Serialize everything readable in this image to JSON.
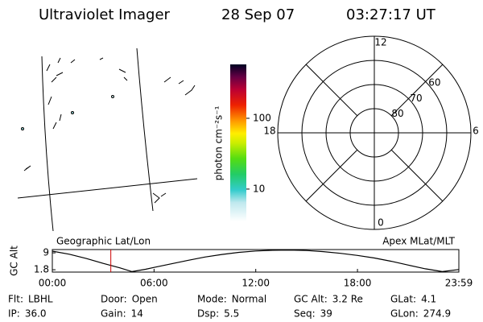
{
  "header": {
    "instrument": "Ultraviolet Imager",
    "date": "28 Sep 07",
    "time": "03:27:17 UT"
  },
  "colorbar": {
    "label": "photon cm⁻²s⁻¹",
    "scale": "log",
    "lim": [
      3.5,
      577
    ],
    "ticks": [
      10,
      100
    ]
  },
  "polar": {
    "lat_lim": [
      50,
      90
    ],
    "rings": [
      50,
      60,
      70,
      80
    ],
    "ring_labels": [
      60,
      70,
      80
    ],
    "mlt_labels": [
      12,
      18,
      6,
      0
    ]
  },
  "chart_data": {
    "type": "line",
    "ylabel": "GC Alt",
    "left_label": "Geographic Lat/Lon",
    "right_label": "Apex MLat/MLT",
    "x": [
      0,
      1,
      2,
      3,
      4,
      4.7,
      5.5,
      6,
      7,
      8,
      9,
      10,
      11,
      12,
      13,
      14,
      15,
      16,
      17,
      18,
      19,
      20,
      21,
      22,
      23,
      23.98
    ],
    "values": [
      9.7,
      8.4,
      6.6,
      4.5,
      2.6,
      1.0,
      2.0,
      2.8,
      4.3,
      5.8,
      7.2,
      8.3,
      9.2,
      9.8,
      10.1,
      10.2,
      10.0,
      9.5,
      8.8,
      7.9,
      6.8,
      5.4,
      3.8,
      2.2,
      1.0,
      1.9
    ],
    "color": "#000000",
    "marker_x": 3.45,
    "marker_color": "#cc0000",
    "xlim": [
      0,
      23.98
    ],
    "ylim": [
      0.8,
      10.4
    ],
    "xticks": [
      {
        "value": 0,
        "label": "00:00"
      },
      {
        "value": 6,
        "label": "06:00"
      },
      {
        "value": 12,
        "label": "12:00"
      },
      {
        "value": 18,
        "label": "18:00"
      },
      {
        "value": 23.98,
        "label": "23:59"
      }
    ],
    "yticks": [
      1.8,
      9.0
    ]
  },
  "status": [
    [
      {
        "label": "Flt:",
        "value": "LBHL"
      },
      {
        "label": "Door:",
        "value": "Open"
      },
      {
        "label": "Mode:",
        "value": "Normal"
      },
      {
        "label": "GC Alt:",
        "value": "3.2 Re"
      },
      {
        "label": "GLat:",
        "value": "4.1"
      }
    ],
    [
      {
        "label": "IP:",
        "value": "36.0"
      },
      {
        "label": "Gain:",
        "value": "14"
      },
      {
        "label": "Dsp:",
        "value": "5.5"
      },
      {
        "label": "Seq:",
        "value": "39"
      },
      {
        "label": "GLon:",
        "value": "274.9"
      }
    ]
  ]
}
